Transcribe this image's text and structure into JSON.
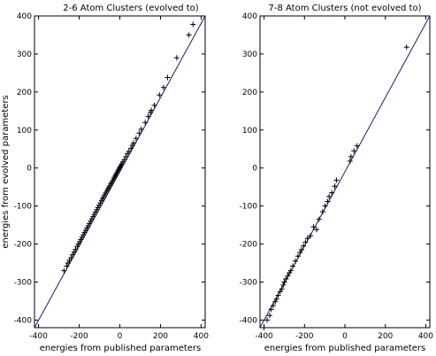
{
  "chart_data": [
    {
      "type": "scatter",
      "title": "2-6 Atom Clusters (evolved to)",
      "xlabel": "energies from published parameters",
      "ylabel": "energies from evolved parameters",
      "xlim": [
        -420,
        420
      ],
      "ylim": [
        -420,
        400
      ],
      "xticks": [
        -400,
        -200,
        0,
        200,
        400
      ],
      "yticks": [
        -400,
        -300,
        -200,
        -100,
        0,
        100,
        200,
        300,
        400
      ],
      "xtick_labels": [
        "-400",
        "-200",
        "0",
        "200",
        "400"
      ],
      "ytick_labels": [
        "-400",
        "-300",
        "-200",
        "-100",
        "0",
        "100",
        "200",
        "300",
        "400"
      ],
      "grid": false,
      "marker": "+",
      "reference_line": {
        "x": [
          -420,
          420
        ],
        "y": [
          -420,
          400
        ]
      },
      "series": [
        {
          "x": [
            -275,
            -262,
            -255,
            -248,
            -240,
            -232,
            -225,
            -218,
            -210,
            -204,
            -198,
            -192,
            -186,
            -180,
            -174,
            -168,
            -162,
            -156,
            -150,
            -144,
            -138,
            -132,
            -126,
            -120,
            -114,
            -108,
            -102,
            -96,
            -90,
            -85,
            -80,
            -75,
            -70,
            -65,
            -60,
            -55,
            -50,
            -45,
            -40,
            -35,
            -30,
            -26,
            -22,
            -18,
            -14,
            -10,
            -6,
            -2,
            2,
            6,
            10,
            15,
            22,
            30,
            38,
            45,
            55,
            62,
            68,
            80,
            95,
            105,
            125,
            140,
            150,
            155,
            170,
            195,
            215,
            235,
            280,
            340,
            360
          ],
          "y": [
            -270,
            -258,
            -250,
            -243,
            -236,
            -228,
            -221,
            -214,
            -206,
            -200,
            -194,
            -188,
            -182,
            -176,
            -170,
            -164,
            -158,
            -152,
            -146,
            -140,
            -134,
            -128,
            -122,
            -116,
            -110,
            -104,
            -98,
            -92,
            -86,
            -81,
            -76,
            -71,
            -66,
            -61,
            -56,
            -52,
            -47,
            -42,
            -38,
            -33,
            -28,
            -24,
            -20,
            -16,
            -12,
            -8,
            -4,
            0,
            3,
            7,
            11,
            16,
            22,
            30,
            38,
            44,
            52,
            60,
            66,
            78,
            92,
            102,
            120,
            136,
            146,
            152,
            165,
            192,
            212,
            238,
            290,
            350,
            378
          ]
        }
      ]
    },
    {
      "type": "scatter",
      "title": "7-8 Atom Clusters (not evolved to)",
      "xlabel": "energies from published parameters",
      "ylabel": "",
      "xlim": [
        -420,
        420
      ],
      "ylim": [
        -420,
        400
      ],
      "xticks": [
        -400,
        -200,
        0,
        200,
        400
      ],
      "yticks": [
        -400,
        -300,
        -200,
        -100,
        0,
        100,
        200,
        300,
        400
      ],
      "xtick_labels": [
        "-400",
        "-200",
        "0",
        "200",
        "400"
      ],
      "ytick_labels": [
        "-400",
        "-300",
        "-200",
        "-100",
        "0",
        "100",
        "200",
        "300",
        "400"
      ],
      "grid": false,
      "marker": "+",
      "reference_line": {
        "x": [
          -420,
          420
        ],
        "y": [
          -420,
          400
        ]
      },
      "series": [
        {
          "x": [
            -400,
            -385,
            -372,
            -365,
            -355,
            -345,
            -338,
            -330,
            -320,
            -312,
            -305,
            -300,
            -292,
            -282,
            -275,
            -268,
            -258,
            -245,
            -232,
            -222,
            -215,
            -205,
            -195,
            -185,
            -170,
            -155,
            -140,
            -128,
            -110,
            -98,
            -85,
            -78,
            -65,
            -50,
            -42,
            25,
            30,
            45,
            60,
            305
          ],
          "y": [
            -420,
            -400,
            -388,
            -372,
            -362,
            -352,
            -345,
            -335,
            -325,
            -318,
            -308,
            -300,
            -292,
            -283,
            -276,
            -270,
            -258,
            -245,
            -232,
            -222,
            -215,
            -205,
            -195,
            -185,
            -178,
            -155,
            -162,
            -135,
            -115,
            -100,
            -88,
            -75,
            -65,
            -48,
            -32,
            18,
            30,
            45,
            58,
            318
          ]
        }
      ]
    }
  ]
}
